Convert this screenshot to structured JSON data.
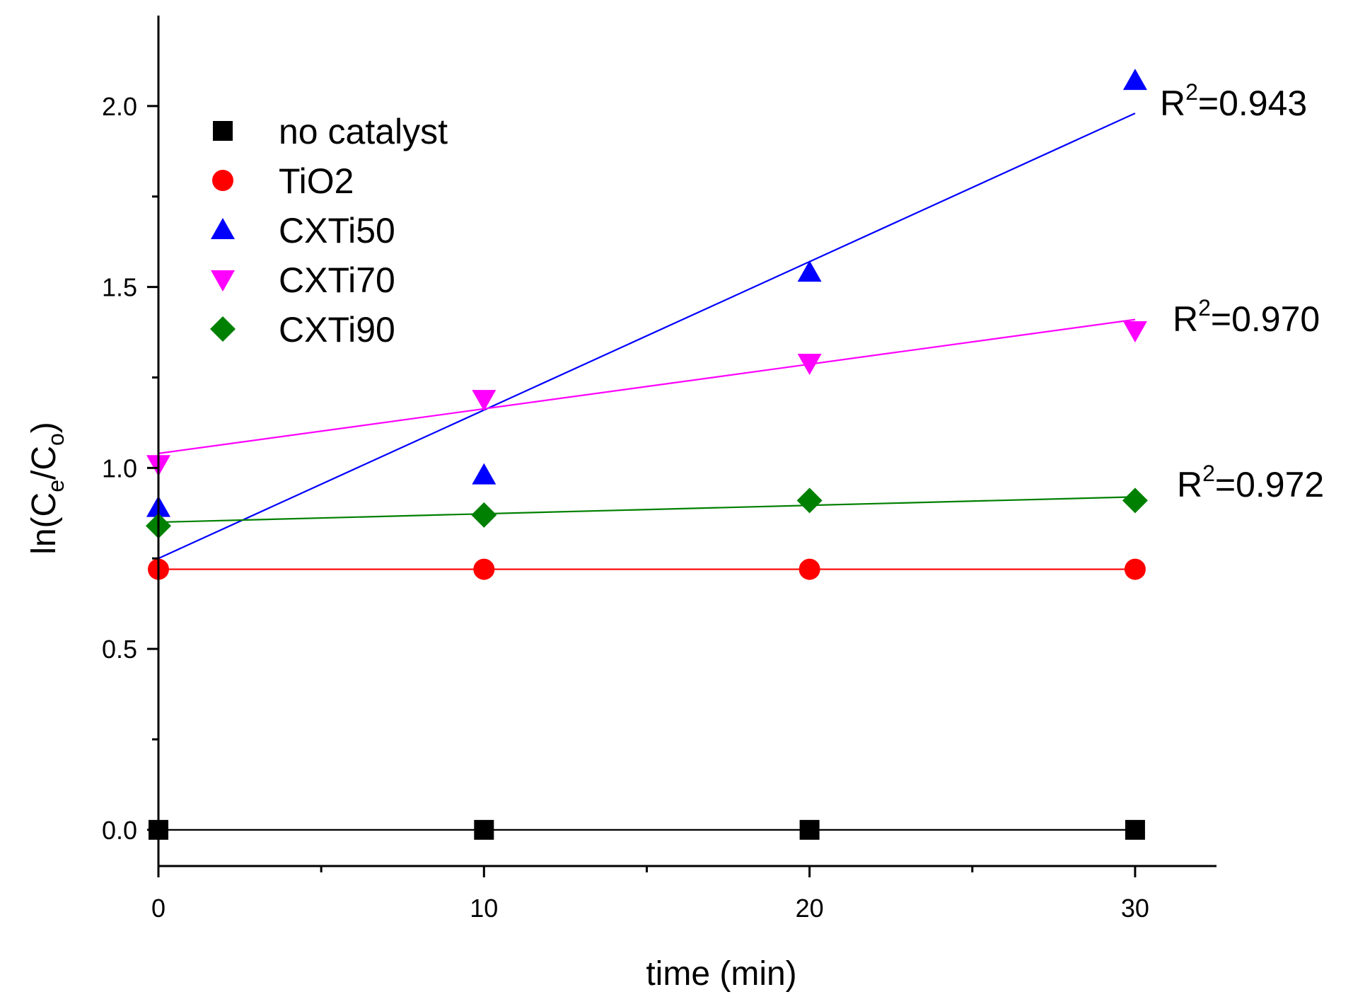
{
  "chart_data": {
    "type": "scatter",
    "title": "",
    "xlabel": "time (min)",
    "ylabel": {
      "base": "ln(C",
      "sub1": "e",
      "mid": "/C",
      "sub2": "o",
      "end": ")"
    },
    "xlim": [
      0,
      32.5
    ],
    "ylim": [
      -0.1,
      2.25
    ],
    "xticks": [
      0,
      10,
      20,
      30
    ],
    "xtick_labels": [
      "0",
      "10",
      "20",
      "30"
    ],
    "yticks": [
      0.0,
      0.5,
      1.0,
      1.5,
      2.0
    ],
    "ytick_labels": [
      "0.0",
      "0.5",
      "1.0",
      "1.5",
      "2.0"
    ],
    "grid": false,
    "legend_position": "top-left",
    "series": [
      {
        "name": "no catalyst",
        "marker": "square",
        "color": "#000000",
        "x": [
          0,
          10,
          20,
          30
        ],
        "y": [
          0.0,
          0.0,
          0.0,
          0.0
        ],
        "fit": [
          0.0,
          0.0
        ]
      },
      {
        "name": "TiO2",
        "marker": "circle",
        "color": "#ff0000",
        "x": [
          0,
          10,
          20,
          30
        ],
        "y": [
          0.72,
          0.72,
          0.72,
          0.72
        ],
        "fit": [
          0.72,
          0.72
        ]
      },
      {
        "name": "CXTi50",
        "marker": "triangle-up",
        "color": "#0000ff",
        "x": [
          0,
          10,
          20,
          30
        ],
        "y": [
          0.89,
          0.98,
          1.54,
          2.07
        ],
        "fit": [
          0.75,
          1.98
        ],
        "r2": "0.943"
      },
      {
        "name": "CXTi70",
        "marker": "triangle-down",
        "color": "#ff00ff",
        "x": [
          0,
          10,
          20,
          30
        ],
        "y": [
          1.01,
          1.19,
          1.29,
          1.38
        ],
        "fit": [
          1.04,
          1.41
        ],
        "r2": "0.970"
      },
      {
        "name": "CXTi90",
        "marker": "diamond",
        "color": "#008000",
        "x": [
          0,
          10,
          20,
          30
        ],
        "y": [
          0.84,
          0.87,
          0.91,
          0.91
        ],
        "fit": [
          0.85,
          0.92
        ],
        "r2": "0.972"
      }
    ],
    "r2_prefix": "R",
    "r2_exponent": "2",
    "r2_separator": "="
  }
}
